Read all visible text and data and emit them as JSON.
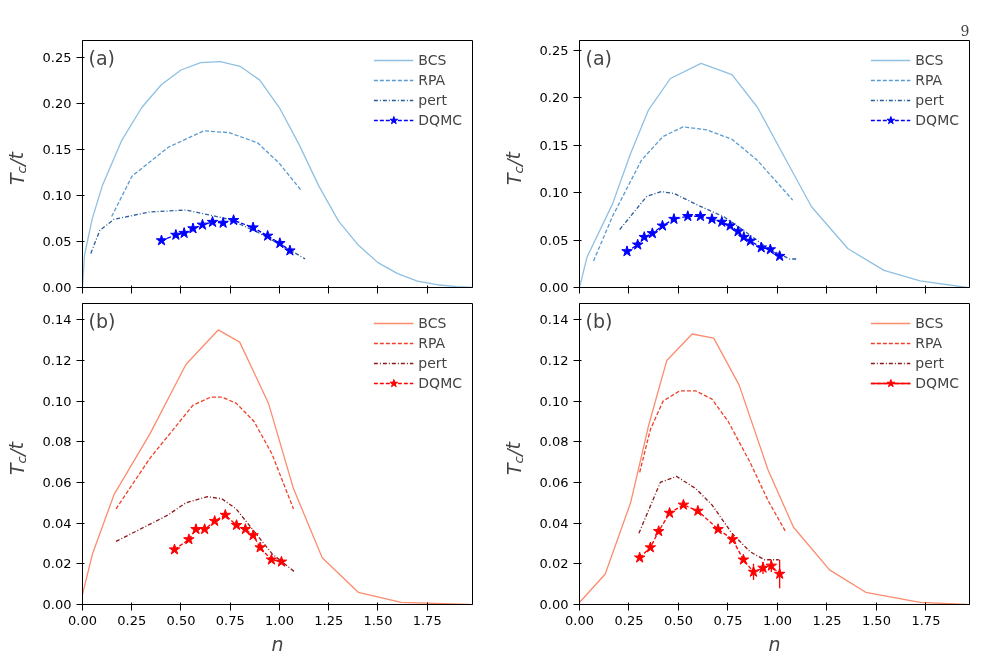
{
  "chart_data": [
    {
      "type": "line",
      "ylabel": "T$_{c}$/t",
      "annotations": [
        "(a)"
      ],
      "tick_labels": "y",
      "legend": "top right",
      "grid": false,
      "xlim": [
        0,
        1.98
      ],
      "xticks": [
        0,
        0.25,
        0.5,
        0.75,
        1,
        1.25,
        1.5,
        1.75
      ],
      "ylim": [
        0,
        0.268
      ],
      "yticks": [
        {
          "value": 0,
          "label": "0.00"
        },
        {
          "value": 0.05,
          "label": "0.05"
        },
        {
          "value": 0.1,
          "label": "0.10"
        },
        {
          "value": 0.15,
          "label": "0.15"
        },
        {
          "value": 0.2,
          "label": "0.20"
        },
        {
          "value": 0.25,
          "label": "0.25"
        }
      ],
      "series": [
        {
          "name": "BCS",
          "color": "#8fc0e2",
          "line_style": "solid",
          "marker": "none",
          "x": [
            0,
            0.01,
            0.05,
            0.1,
            0.2,
            0.3,
            0.4,
            0.5,
            0.6,
            0.7,
            0.8,
            0.9,
            1.0,
            1.1,
            1.2,
            1.3,
            1.4,
            1.5,
            1.6,
            1.7,
            1.8,
            1.9,
            1.98
          ],
          "values": [
            0,
            0.035,
            0.075,
            0.11,
            0.16,
            0.195,
            0.22,
            0.236,
            0.244,
            0.245,
            0.24,
            0.225,
            0.195,
            0.155,
            0.11,
            0.072,
            0.046,
            0.027,
            0.015,
            0.007,
            0.003,
            0.001,
            0
          ]
        },
        {
          "name": "RPA",
          "color": "#5b9bd0",
          "line_style": "dashed",
          "marker": "none",
          "x": [
            0.148,
            0.252,
            0.434,
            0.616,
            0.744,
            0.889,
            0.998,
            1.108
          ],
          "values": [
            0.077,
            0.121,
            0.152,
            0.17,
            0.168,
            0.157,
            0.135,
            0.106
          ]
        },
        {
          "name": "pert",
          "color": "#2a5d9c",
          "line_style": "dashdot",
          "marker": "none",
          "x": [
            0.042,
            0.088,
            0.16,
            0.343,
            0.525,
            0.616,
            0.744,
            0.889,
            1.035,
            1.13
          ],
          "values": [
            0.037,
            0.062,
            0.074,
            0.082,
            0.084,
            0.08,
            0.074,
            0.06,
            0.043,
            0.031
          ]
        },
        {
          "name": "DQMC",
          "color": "#0000ff",
          "line_style": "dashed",
          "marker": "star",
          "x": [
            0.401,
            0.474,
            0.516,
            0.561,
            0.609,
            0.66,
            0.714,
            0.767,
            0.866,
            0.94,
            1.002,
            1.053
          ],
          "values": [
            0.051,
            0.057,
            0.059,
            0.064,
            0.068,
            0.071,
            0.07,
            0.073,
            0.065,
            0.056,
            0.048,
            0.04
          ]
        }
      ]
    },
    {
      "type": "line",
      "ylabel": "T$_{c}$/t",
      "annotations": [
        "(a)",
        "9"
      ],
      "tick_labels": "y",
      "legend": "top right",
      "grid": false,
      "xlim": [
        0,
        1.97
      ],
      "xticks": [
        0,
        0.25,
        0.5,
        0.75,
        1,
        1.25,
        1.5,
        1.75
      ],
      "ylim": [
        0,
        0.26
      ],
      "yticks": [
        {
          "value": 0,
          "label": "0.00"
        },
        {
          "value": 0.05,
          "label": "0.05"
        },
        {
          "value": 0.1,
          "label": "0.10"
        },
        {
          "value": 0.15,
          "label": "0.15"
        },
        {
          "value": 0.2,
          "label": "0.20"
        },
        {
          "value": 0.25,
          "label": "0.25"
        }
      ],
      "series": [
        {
          "name": "BCS",
          "color": "#8fc0e2",
          "line_style": "solid",
          "marker": "none",
          "x": [
            0,
            0.038,
            0.167,
            0.258,
            0.349,
            0.459,
            0.614,
            0.77,
            0.898,
            1.044,
            1.172,
            1.355,
            1.538,
            1.72,
            1.958
          ],
          "values": [
            0,
            0.032,
            0.088,
            0.141,
            0.187,
            0.22,
            0.236,
            0.224,
            0.19,
            0.134,
            0.085,
            0.041,
            0.018,
            0.007,
            0
          ]
        },
        {
          "name": "RPA",
          "color": "#5b9bd0",
          "line_style": "dashed",
          "marker": "none",
          "x": [
            0.071,
            0.167,
            0.313,
            0.422,
            0.523,
            0.642,
            0.77,
            0.898,
            1.077
          ],
          "values": [
            0.028,
            0.075,
            0.134,
            0.159,
            0.169,
            0.166,
            0.156,
            0.134,
            0.092
          ]
        },
        {
          "name": "pert",
          "color": "#2a5d9c",
          "line_style": "dashdot",
          "marker": "none",
          "x": [
            0.203,
            0.34,
            0.413,
            0.477,
            0.605,
            0.733,
            0.843,
            0.953,
            1.062,
            1.095
          ],
          "values": [
            0.061,
            0.096,
            0.101,
            0.099,
            0.086,
            0.074,
            0.058,
            0.041,
            0.03,
            0.03
          ]
        },
        {
          "name": "DQMC",
          "color": "#0000ff",
          "line_style": "dashed",
          "marker": "star",
          "x": [
            0.24,
            0.294,
            0.327,
            0.368,
            0.419,
            0.477,
            0.547,
            0.611,
            0.669,
            0.719,
            0.761,
            0.801,
            0.83,
            0.863,
            0.918,
            0.964,
            1.011
          ],
          "values": [
            0.038,
            0.045,
            0.053,
            0.057,
            0.065,
            0.072,
            0.075,
            0.075,
            0.072,
            0.069,
            0.065,
            0.059,
            0.053,
            0.049,
            0.042,
            0.04,
            0.033
          ]
        }
      ]
    },
    {
      "type": "line",
      "ylabel": "T$_{c}$/t",
      "xlabel": "n",
      "annotations": [
        "(b)"
      ],
      "legend": "top right",
      "grid": false,
      "xlim": [
        0,
        1.98
      ],
      "xticks": [
        {
          "value": 0,
          "label": "0.00"
        },
        {
          "value": 0.25,
          "label": "0.25"
        },
        {
          "value": 0.5,
          "label": "0.50"
        },
        {
          "value": 0.75,
          "label": "0.75"
        },
        {
          "value": 1,
          "label": "1.00"
        },
        {
          "value": 1.25,
          "label": "1.25"
        },
        {
          "value": 1.5,
          "label": "1.50"
        },
        {
          "value": 1.75,
          "label": "1.75"
        }
      ],
      "ylim": [
        0,
        0.148
      ],
      "yticks": [
        {
          "value": 0,
          "label": "0.00"
        },
        {
          "value": 0.02,
          "label": "0.02"
        },
        {
          "value": 0.04,
          "label": "0.04"
        },
        {
          "value": 0.06,
          "label": "0.06"
        },
        {
          "value": 0.08,
          "label": "0.08"
        },
        {
          "value": 0.1,
          "label": "0.10"
        },
        {
          "value": 0.12,
          "label": "0.12"
        },
        {
          "value": 0.14,
          "label": "0.14"
        }
      ],
      "series": [
        {
          "name": "BCS",
          "color": "#fb8c6e",
          "line_style": "solid",
          "marker": "none",
          "x": [
            0,
            0.051,
            0.16,
            0.343,
            0.525,
            0.689,
            0.798,
            0.944,
            1.071,
            1.217,
            1.4,
            1.618,
            1.965
          ],
          "values": [
            0.005,
            0.025,
            0.054,
            0.084,
            0.118,
            0.135,
            0.129,
            0.099,
            0.057,
            0.023,
            0.006,
            0.001,
            0
          ]
        },
        {
          "name": "RPA",
          "color": "#f0402a",
          "line_style": "dashed",
          "marker": "none",
          "x": [
            0.17,
            0.343,
            0.561,
            0.652,
            0.707,
            0.78,
            0.871,
            0.962,
            1.071
          ],
          "values": [
            0.047,
            0.072,
            0.098,
            0.102,
            0.102,
            0.099,
            0.09,
            0.074,
            0.047
          ]
        },
        {
          "name": "pert",
          "color": "#8b1a1a",
          "line_style": "dashdot",
          "marker": "none",
          "x": [
            0.17,
            0.434,
            0.525,
            0.634,
            0.707,
            0.78,
            0.871,
            0.962,
            1.077
          ],
          "values": [
            0.031,
            0.044,
            0.05,
            0.053,
            0.052,
            0.047,
            0.036,
            0.025,
            0.016
          ]
        },
        {
          "name": "DQMC",
          "color": "#ff0000",
          "line_style": "dashed",
          "marker": "star",
          "x": [
            0.467,
            0.54,
            0.576,
            0.62,
            0.671,
            0.725,
            0.782,
            0.827,
            0.866,
            0.902,
            0.959,
            1.01
          ],
          "values": [
            0.027,
            0.032,
            0.037,
            0.037,
            0.041,
            0.044,
            0.039,
            0.037,
            0.034,
            0.028,
            0.022,
            0.021
          ]
        }
      ]
    },
    {
      "type": "line",
      "ylabel": "T$_{c}$/t",
      "xlabel": "n",
      "annotations": [
        "(b)"
      ],
      "legend": "top right",
      "grid": false,
      "xlim": [
        0,
        1.97
      ],
      "xticks": [
        {
          "value": 0,
          "label": "0.00"
        },
        {
          "value": 0.25,
          "label": "0.25"
        },
        {
          "value": 0.5,
          "label": "0.50"
        },
        {
          "value": 0.75,
          "label": "0.75"
        },
        {
          "value": 1,
          "label": "1.00"
        },
        {
          "value": 1.25,
          "label": "1.25"
        },
        {
          "value": 1.5,
          "label": "1.50"
        },
        {
          "value": 1.75,
          "label": "1.75"
        }
      ],
      "ylim": [
        0,
        0.148
      ],
      "yticks": [
        {
          "value": 0,
          "label": "0.00"
        },
        {
          "value": 0.02,
          "label": "0.02"
        },
        {
          "value": 0.04,
          "label": "0.04"
        },
        {
          "value": 0.06,
          "label": "0.06"
        },
        {
          "value": 0.08,
          "label": "0.08"
        },
        {
          "value": 0.1,
          "label": "0.10"
        },
        {
          "value": 0.12,
          "label": "0.12"
        },
        {
          "value": 0.14,
          "label": "0.14"
        }
      ],
      "series": [
        {
          "name": "BCS",
          "color": "#fb8c6e",
          "line_style": "solid",
          "marker": "none",
          "x": [
            0,
            0.13,
            0.258,
            0.349,
            0.441,
            0.569,
            0.678,
            0.806,
            0.953,
            1.081,
            1.263,
            1.446,
            1.72,
            1.958
          ],
          "values": [
            0.001,
            0.015,
            0.05,
            0.088,
            0.12,
            0.133,
            0.131,
            0.108,
            0.066,
            0.038,
            0.017,
            0.006,
            0.001,
            0
          ]
        },
        {
          "name": "RPA",
          "color": "#f0402a",
          "line_style": "dashed",
          "marker": "none",
          "x": [
            0.304,
            0.358,
            0.422,
            0.505,
            0.587,
            0.669,
            0.751,
            0.861,
            0.953,
            1.04
          ],
          "values": [
            0.065,
            0.086,
            0.1,
            0.105,
            0.105,
            0.101,
            0.09,
            0.07,
            0.051,
            0.036
          ]
        },
        {
          "name": "pert",
          "color": "#8b1a1a",
          "line_style": "dashdot",
          "marker": "none",
          "x": [
            0.3,
            0.408,
            0.49,
            0.587,
            0.669,
            0.77,
            0.861,
            0.934,
            1.007
          ],
          "values": [
            0.035,
            0.06,
            0.063,
            0.057,
            0.049,
            0.035,
            0.026,
            0.022,
            0.022
          ]
        },
        {
          "name": "DQMC",
          "color": "#ff0000",
          "line_style": "dashed",
          "marker": "star",
          "x": [
            0.304,
            0.358,
            0.4,
            0.455,
            0.525,
            0.598,
            0.7,
            0.773,
            0.828,
            0.879,
            0.927,
            0.969,
            1.011
          ],
          "values": [
            0.023,
            0.028,
            0.036,
            0.045,
            0.049,
            0.046,
            0.037,
            0.032,
            0.022,
            0.016,
            0.018,
            0.019,
            0.015
          ],
          "errors": [
            null,
            null,
            null,
            null,
            null,
            null,
            null,
            null,
            null,
            0.004,
            0.003,
            0.003,
            0.007
          ]
        }
      ]
    }
  ]
}
